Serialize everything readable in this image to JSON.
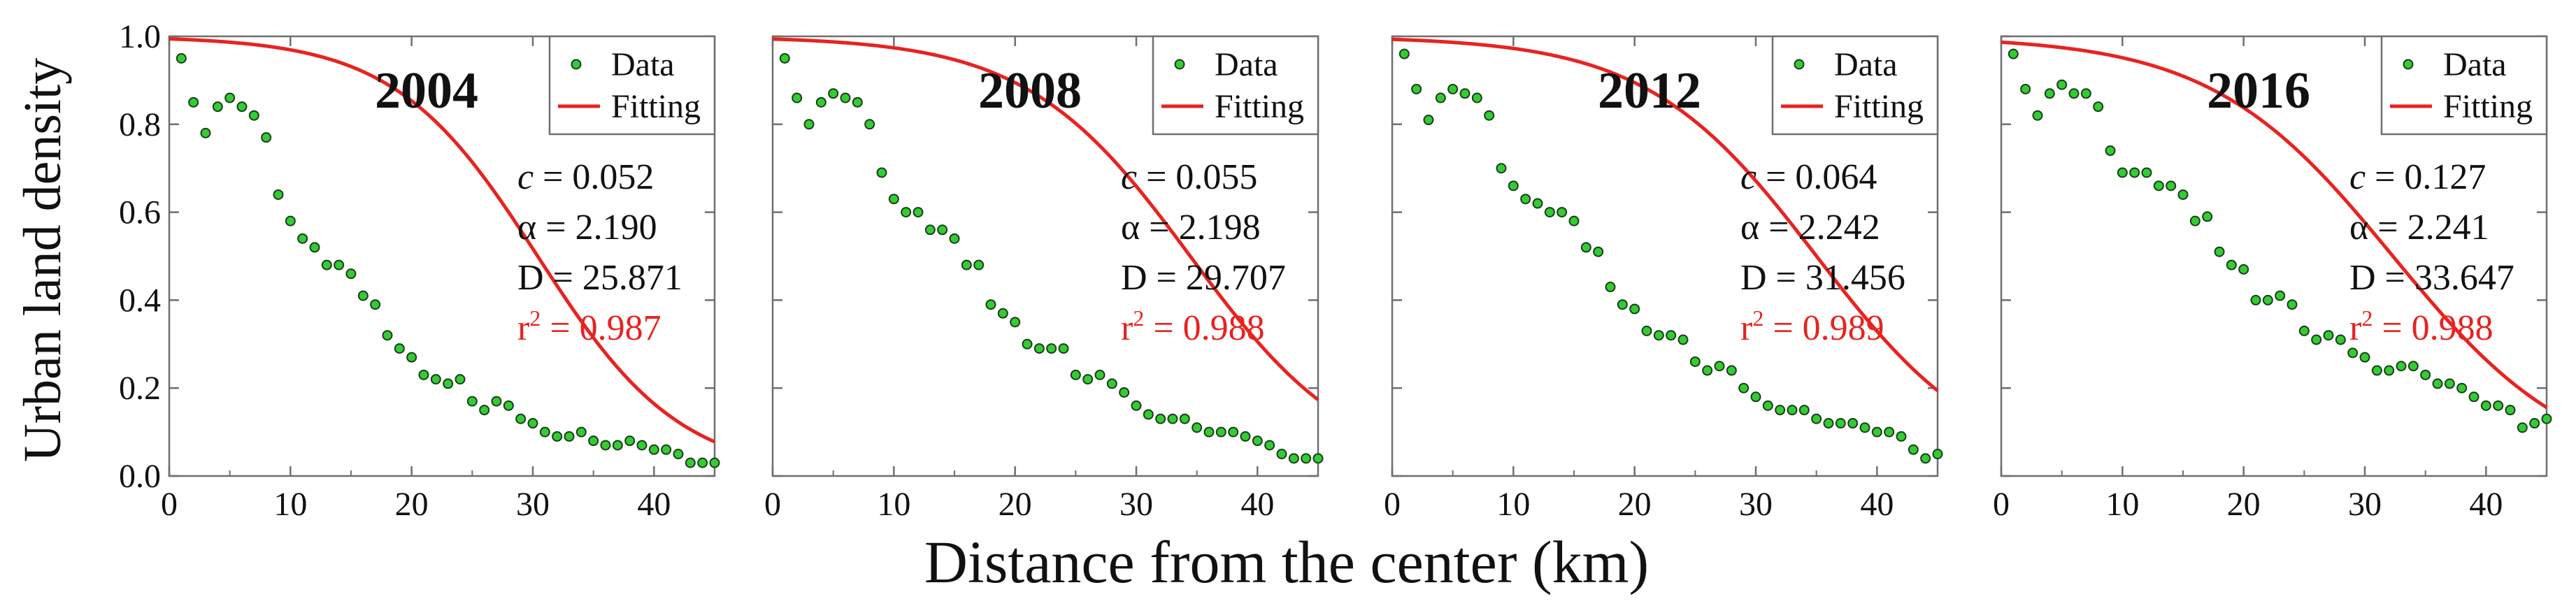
{
  "figure": {
    "ylabel": "Urban land density",
    "xlabel": "Distance from the center (km)",
    "legend": {
      "data_label": "Data",
      "fit_label": "Fitting"
    },
    "colors": {
      "data_fill": "#33cc33",
      "data_edge": "#1a3d1a",
      "fit": "#e8231f",
      "r2_text": "#e8231f",
      "frame": "#6f6f6f"
    }
  },
  "chart_data": [
    {
      "type": "scatter",
      "title": "2004",
      "xlim": [
        0,
        45
      ],
      "ylim": [
        0,
        1.0
      ],
      "xticks": [
        0,
        10,
        20,
        30,
        40
      ],
      "yticks": [
        0.0,
        0.2,
        0.4,
        0.6,
        0.8,
        1.0
      ],
      "params": {
        "c": "0.052",
        "alpha": "2.190",
        "D": "25.871",
        "r2": "0.987"
      },
      "series": [
        {
          "name": "Data",
          "x": [
            1,
            2,
            3,
            4,
            5,
            6,
            7,
            8,
            9,
            10,
            11,
            12,
            13,
            14,
            15,
            16,
            17,
            18,
            19,
            20,
            21,
            22,
            23,
            24,
            25,
            26,
            27,
            28,
            29,
            30,
            31,
            32,
            33,
            34,
            35,
            36,
            37,
            38,
            39,
            40,
            41,
            42,
            43,
            44,
            45
          ],
          "values": [
            0.95,
            0.85,
            0.78,
            0.84,
            0.86,
            0.84,
            0.82,
            0.77,
            0.64,
            0.58,
            0.54,
            0.52,
            0.48,
            0.48,
            0.46,
            0.41,
            0.39,
            0.32,
            0.29,
            0.27,
            0.23,
            0.22,
            0.21,
            0.22,
            0.17,
            0.15,
            0.17,
            0.16,
            0.13,
            0.12,
            0.1,
            0.09,
            0.09,
            0.1,
            0.08,
            0.07,
            0.07,
            0.08,
            0.07,
            0.06,
            0.06,
            0.05,
            0.03,
            0.03,
            0.03
          ]
        },
        {
          "name": "Fitting",
          "c": 0.052,
          "alpha": 2.19,
          "D": 25.871
        }
      ]
    },
    {
      "type": "scatter",
      "title": "2008",
      "xlim": [
        0,
        45
      ],
      "ylim": [
        0,
        1.0
      ],
      "xticks": [
        0,
        10,
        20,
        30,
        40
      ],
      "params": {
        "c": "0.055",
        "alpha": "2.198",
        "D": "29.707",
        "r2": "0.988"
      },
      "series": [
        {
          "name": "Data",
          "x": [
            1,
            2,
            3,
            4,
            5,
            6,
            7,
            8,
            9,
            10,
            11,
            12,
            13,
            14,
            15,
            16,
            17,
            18,
            19,
            20,
            21,
            22,
            23,
            24,
            25,
            26,
            27,
            28,
            29,
            30,
            31,
            32,
            33,
            34,
            35,
            36,
            37,
            38,
            39,
            40,
            41,
            42,
            43,
            44,
            45
          ],
          "values": [
            0.95,
            0.86,
            0.8,
            0.85,
            0.87,
            0.86,
            0.85,
            0.8,
            0.69,
            0.63,
            0.6,
            0.6,
            0.56,
            0.56,
            0.54,
            0.48,
            0.48,
            0.39,
            0.37,
            0.35,
            0.3,
            0.29,
            0.29,
            0.29,
            0.23,
            0.22,
            0.23,
            0.21,
            0.19,
            0.16,
            0.14,
            0.13,
            0.13,
            0.13,
            0.11,
            0.1,
            0.1,
            0.1,
            0.09,
            0.08,
            0.07,
            0.05,
            0.04,
            0.04,
            0.04
          ]
        },
        {
          "name": "Fitting",
          "c": 0.055,
          "alpha": 2.198,
          "D": 29.707
        }
      ]
    },
    {
      "type": "scatter",
      "title": "2012",
      "xlim": [
        0,
        45
      ],
      "ylim": [
        0,
        1.0
      ],
      "xticks": [
        0,
        10,
        20,
        30,
        40
      ],
      "params": {
        "c": "0.064",
        "alpha": "2.242",
        "D": "31.456",
        "r2": "0.989"
      },
      "series": [
        {
          "name": "Data",
          "x": [
            1,
            2,
            3,
            4,
            5,
            6,
            7,
            8,
            9,
            10,
            11,
            12,
            13,
            14,
            15,
            16,
            17,
            18,
            19,
            20,
            21,
            22,
            23,
            24,
            25,
            26,
            27,
            28,
            29,
            30,
            31,
            32,
            33,
            34,
            35,
            36,
            37,
            38,
            39,
            40,
            41,
            42,
            43,
            44,
            45
          ],
          "values": [
            0.96,
            0.88,
            0.81,
            0.86,
            0.88,
            0.87,
            0.86,
            0.82,
            0.7,
            0.66,
            0.63,
            0.62,
            0.6,
            0.6,
            0.58,
            0.52,
            0.51,
            0.43,
            0.39,
            0.38,
            0.33,
            0.32,
            0.32,
            0.31,
            0.26,
            0.24,
            0.25,
            0.24,
            0.2,
            0.18,
            0.16,
            0.15,
            0.15,
            0.15,
            0.13,
            0.12,
            0.12,
            0.12,
            0.11,
            0.1,
            0.1,
            0.09,
            0.06,
            0.04,
            0.05
          ]
        },
        {
          "name": "Fitting",
          "c": 0.064,
          "alpha": 2.242,
          "D": 31.456
        }
      ]
    },
    {
      "type": "scatter",
      "title": "2016",
      "xlim": [
        0,
        45
      ],
      "ylim": [
        0,
        1.0
      ],
      "xticks": [
        0,
        10,
        20,
        30,
        40
      ],
      "params": {
        "c": "0.127",
        "alpha": "2.241",
        "D": "33.647",
        "r2": "0.988"
      },
      "series": [
        {
          "name": "Data",
          "x": [
            1,
            2,
            3,
            4,
            5,
            6,
            7,
            8,
            9,
            10,
            11,
            12,
            13,
            14,
            15,
            16,
            17,
            18,
            19,
            20,
            21,
            22,
            23,
            24,
            25,
            26,
            27,
            28,
            29,
            30,
            31,
            32,
            33,
            34,
            35,
            36,
            37,
            38,
            39,
            40,
            41,
            42,
            43,
            44,
            45
          ],
          "values": [
            0.96,
            0.88,
            0.82,
            0.87,
            0.89,
            0.87,
            0.87,
            0.84,
            0.74,
            0.69,
            0.69,
            0.69,
            0.66,
            0.66,
            0.64,
            0.58,
            0.59,
            0.51,
            0.48,
            0.47,
            0.4,
            0.4,
            0.41,
            0.39,
            0.33,
            0.31,
            0.32,
            0.31,
            0.28,
            0.27,
            0.24,
            0.24,
            0.25,
            0.25,
            0.23,
            0.21,
            0.21,
            0.2,
            0.18,
            0.16,
            0.16,
            0.15,
            0.11,
            0.12,
            0.13
          ]
        },
        {
          "name": "Fitting",
          "c": 0.127,
          "alpha": 2.241,
          "D": 33.647
        }
      ]
    }
  ]
}
